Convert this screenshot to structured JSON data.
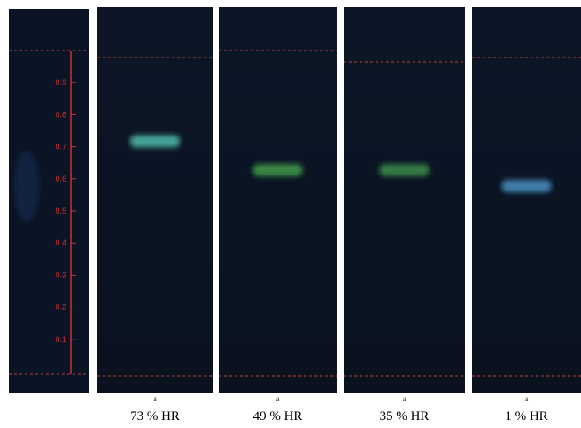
{
  "scale": {
    "ticks": [
      0.1,
      0.2,
      0.3,
      0.4,
      0.5,
      0.6,
      0.7,
      0.8,
      0.9
    ]
  },
  "plates": [
    {
      "mark": "a",
      "label": "73 % HR",
      "spot_rf": 0.72,
      "spot_color": "#4fb8a8"
    },
    {
      "mark": "a",
      "label": "49 % HR",
      "spot_rf": 0.63,
      "spot_color": "#3f9a4a"
    },
    {
      "mark": "a",
      "label": "35 % HR",
      "spot_rf": 0.63,
      "spot_color": "#3a8a4a"
    },
    {
      "mark": "a",
      "label": "1 % HR",
      "spot_rf": 0.58,
      "spot_color": "#4a8fc0"
    }
  ]
}
